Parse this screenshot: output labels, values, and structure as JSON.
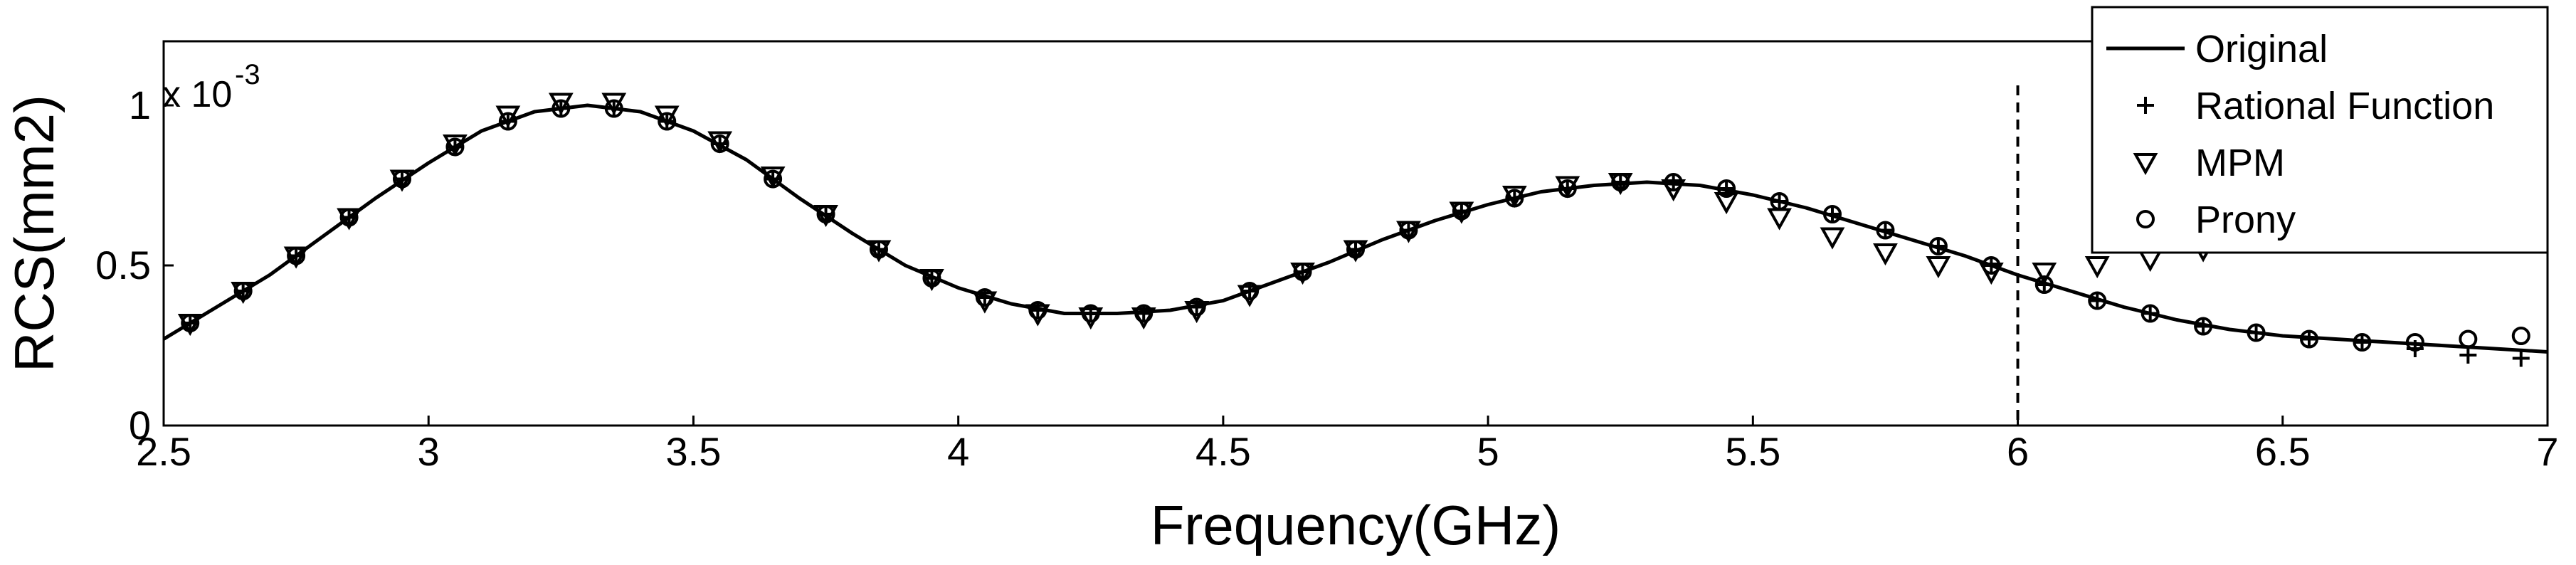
{
  "chart_data": {
    "type": "line",
    "xlabel": "Frequency(GHz)",
    "ylabel": "RCS(mm2)",
    "y_multiplier_base": "x 10",
    "y_multiplier_exponent": "-3",
    "xlim": [
      2.5,
      7
    ],
    "ylim": [
      0,
      1.2
    ],
    "x_ticks": [
      "2.5",
      "3",
      "3.5",
      "4",
      "4.5",
      "5",
      "5.5",
      "6",
      "6.5",
      "7"
    ],
    "y_ticks": [
      "0",
      "0.5",
      "1"
    ],
    "x_tick_values": [
      2.5,
      3,
      3.5,
      4,
      4.5,
      5,
      5.5,
      6,
      6.5,
      7
    ],
    "y_tick_values": [
      0,
      0.5,
      1
    ],
    "grid": false,
    "legend_position": "top-right",
    "vertical_reference_line_x": 6,
    "series": [
      {
        "name": "Original",
        "marker": "line",
        "x": [
          2.5,
          2.6,
          2.7,
          2.8,
          2.9,
          3.0,
          3.1,
          3.2,
          3.3,
          3.4,
          3.5,
          3.6,
          3.7,
          3.8,
          3.9,
          4.0,
          4.1,
          4.2,
          4.3,
          4.4,
          4.5,
          4.6,
          4.7,
          4.8,
          4.9,
          5.0,
          5.1,
          5.2,
          5.3,
          5.4,
          5.5,
          5.6,
          5.7,
          5.8,
          5.9,
          6.0,
          6.1,
          6.2,
          6.3,
          6.4,
          6.5,
          6.6,
          6.7,
          6.8,
          6.9,
          7.0
        ],
        "y": [
          0.27,
          0.37,
          0.47,
          0.59,
          0.71,
          0.82,
          0.92,
          0.98,
          1.0,
          0.98,
          0.92,
          0.83,
          0.71,
          0.6,
          0.5,
          0.43,
          0.38,
          0.35,
          0.35,
          0.36,
          0.39,
          0.45,
          0.51,
          0.58,
          0.64,
          0.69,
          0.73,
          0.75,
          0.76,
          0.75,
          0.72,
          0.68,
          0.63,
          0.58,
          0.53,
          0.47,
          0.42,
          0.37,
          0.33,
          0.3,
          0.28,
          0.27,
          0.26,
          0.25,
          0.24,
          0.23
        ]
      },
      {
        "name": "Rational Function",
        "marker": "plus",
        "x": [
          2.55,
          2.65,
          2.75,
          2.85,
          2.95,
          3.05,
          3.15,
          3.25,
          3.35,
          3.45,
          3.55,
          3.65,
          3.75,
          3.85,
          3.95,
          4.05,
          4.15,
          4.25,
          4.35,
          4.45,
          4.55,
          4.65,
          4.75,
          4.85,
          4.95,
          5.05,
          5.15,
          5.25,
          5.35,
          5.45,
          5.55,
          5.65,
          5.75,
          5.85,
          5.95,
          6.05,
          6.15,
          6.25,
          6.35,
          6.45,
          6.55,
          6.65,
          6.75,
          6.85,
          6.95
        ],
        "y": [
          0.32,
          0.42,
          0.53,
          0.65,
          0.77,
          0.87,
          0.95,
          0.99,
          0.99,
          0.95,
          0.88,
          0.77,
          0.66,
          0.55,
          0.46,
          0.4,
          0.36,
          0.35,
          0.35,
          0.37,
          0.42,
          0.48,
          0.55,
          0.61,
          0.67,
          0.71,
          0.74,
          0.76,
          0.76,
          0.74,
          0.7,
          0.66,
          0.61,
          0.56,
          0.5,
          0.44,
          0.39,
          0.35,
          0.31,
          0.29,
          0.27,
          0.26,
          0.24,
          0.22,
          0.21
        ]
      },
      {
        "name": "MPM",
        "marker": "triangle-down",
        "x": [
          2.55,
          2.65,
          2.75,
          2.85,
          2.95,
          3.05,
          3.15,
          3.25,
          3.35,
          3.45,
          3.55,
          3.65,
          3.75,
          3.85,
          3.95,
          4.05,
          4.15,
          4.25,
          4.35,
          4.45,
          4.55,
          4.65,
          4.75,
          4.85,
          4.95,
          5.05,
          5.15,
          5.25,
          5.35,
          5.45,
          5.55,
          5.65,
          5.75,
          5.85,
          5.95,
          6.05,
          6.15,
          6.25,
          6.35,
          6.45,
          6.55,
          6.65,
          6.75,
          6.85,
          6.95
        ],
        "y": [
          0.32,
          0.42,
          0.53,
          0.65,
          0.77,
          0.88,
          0.97,
          1.01,
          1.01,
          0.97,
          0.89,
          0.78,
          0.66,
          0.55,
          0.46,
          0.39,
          0.35,
          0.34,
          0.34,
          0.36,
          0.41,
          0.48,
          0.55,
          0.61,
          0.67,
          0.72,
          0.75,
          0.76,
          0.74,
          0.7,
          0.65,
          0.59,
          0.54,
          0.5,
          0.48,
          0.48,
          0.5,
          0.52,
          0.55,
          0.58,
          0.6,
          0.61,
          0.62,
          0.62,
          0.62
        ]
      },
      {
        "name": "Prony",
        "marker": "circle",
        "x": [
          2.55,
          2.65,
          2.75,
          2.85,
          2.95,
          3.05,
          3.15,
          3.25,
          3.35,
          3.45,
          3.55,
          3.65,
          3.75,
          3.85,
          3.95,
          4.05,
          4.15,
          4.25,
          4.35,
          4.45,
          4.55,
          4.65,
          4.75,
          4.85,
          4.95,
          5.05,
          5.15,
          5.25,
          5.35,
          5.45,
          5.55,
          5.65,
          5.75,
          5.85,
          5.95,
          6.05,
          6.15,
          6.25,
          6.35,
          6.45,
          6.55,
          6.65,
          6.75,
          6.85,
          6.95
        ],
        "y": [
          0.32,
          0.42,
          0.53,
          0.65,
          0.77,
          0.87,
          0.95,
          0.99,
          0.99,
          0.95,
          0.88,
          0.77,
          0.66,
          0.55,
          0.46,
          0.4,
          0.36,
          0.35,
          0.35,
          0.37,
          0.42,
          0.48,
          0.55,
          0.61,
          0.67,
          0.71,
          0.74,
          0.76,
          0.76,
          0.74,
          0.7,
          0.66,
          0.61,
          0.56,
          0.5,
          0.44,
          0.39,
          0.35,
          0.31,
          0.29,
          0.27,
          0.26,
          0.26,
          0.27,
          0.28
        ]
      }
    ]
  }
}
